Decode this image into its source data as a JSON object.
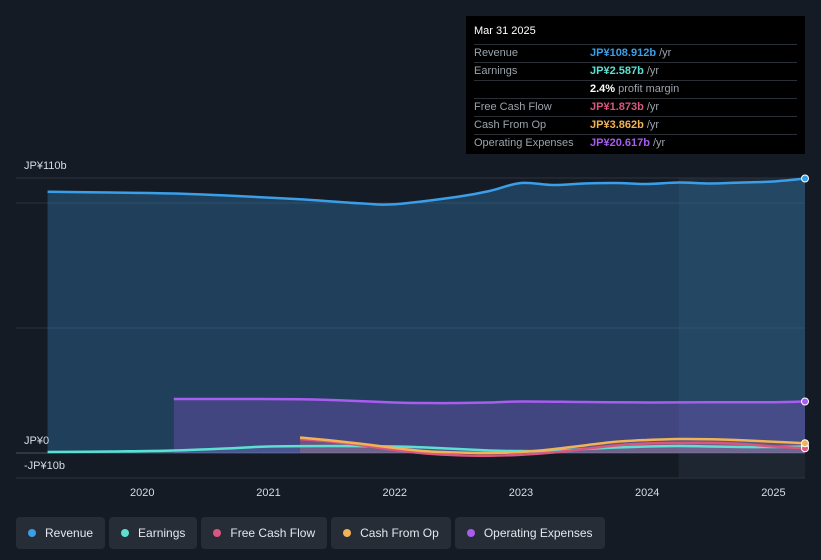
{
  "tooltip": {
    "date": "Mar 31 2025",
    "rows": [
      {
        "label": "Revenue",
        "value": "JP¥108.912b",
        "unit": "/yr",
        "color": "#3b9ee8"
      },
      {
        "label": "Earnings",
        "value": "JP¥2.587b",
        "unit": "/yr",
        "color": "#5ce0d2"
      },
      {
        "label": "",
        "value": "2.4%",
        "unit": "profit margin",
        "color": "#ffffff"
      },
      {
        "label": "Free Cash Flow",
        "value": "JP¥1.873b",
        "unit": "/yr",
        "color": "#d9577f"
      },
      {
        "label": "Cash From Op",
        "value": "JP¥3.862b",
        "unit": "/yr",
        "color": "#f0b356"
      },
      {
        "label": "Operating Expenses",
        "value": "JP¥20.617b",
        "unit": "/yr",
        "color": "#a85cf0"
      }
    ]
  },
  "legend": [
    {
      "label": "Revenue",
      "color": "#3b9ee8"
    },
    {
      "label": "Earnings",
      "color": "#5ce0d2"
    },
    {
      "label": "Free Cash Flow",
      "color": "#d9577f"
    },
    {
      "label": "Cash From Op",
      "color": "#f0b356"
    },
    {
      "label": "Operating Expenses",
      "color": "#a85cf0"
    }
  ],
  "chart_data": {
    "type": "area",
    "y_tick_labels": [
      "JP¥110b",
      "JP¥0",
      "-JP¥10b"
    ],
    "x_tick_labels": [
      "2020",
      "2021",
      "2022",
      "2023",
      "2024",
      "2025"
    ],
    "ylim": [
      -10,
      110
    ],
    "xlim": [
      2019.0,
      2025.25
    ],
    "highlight_from": 2024.25,
    "series": [
      {
        "name": "Revenue",
        "color": "#3b9ee8",
        "points": [
          [
            2019.25,
            104.5
          ],
          [
            2019.75,
            104.2
          ],
          [
            2020.25,
            103.8
          ],
          [
            2020.75,
            102.8
          ],
          [
            2021.25,
            101.5
          ],
          [
            2021.75,
            99.8
          ],
          [
            2022.0,
            99.5
          ],
          [
            2022.5,
            102.5
          ],
          [
            2022.75,
            104.8
          ],
          [
            2023.0,
            108.0
          ],
          [
            2023.25,
            107.2
          ],
          [
            2023.5,
            107.8
          ],
          [
            2023.75,
            108.0
          ],
          [
            2024.0,
            107.6
          ],
          [
            2024.25,
            108.2
          ],
          [
            2024.5,
            107.8
          ],
          [
            2024.75,
            108.2
          ],
          [
            2025.0,
            108.6
          ],
          [
            2025.25,
            109.8
          ]
        ]
      },
      {
        "name": "Earnings",
        "color": "#5ce0d2",
        "points": [
          [
            2019.25,
            0.4
          ],
          [
            2019.75,
            0.6
          ],
          [
            2020.25,
            1.0
          ],
          [
            2020.75,
            2.0
          ],
          [
            2021.0,
            2.6
          ],
          [
            2021.5,
            2.8
          ],
          [
            2022.0,
            2.6
          ],
          [
            2022.25,
            2.2
          ],
          [
            2022.75,
            1.0
          ],
          [
            2023.0,
            0.8
          ],
          [
            2023.25,
            0.8
          ],
          [
            2023.5,
            1.6
          ],
          [
            2023.75,
            2.2
          ],
          [
            2024.0,
            2.6
          ],
          [
            2024.25,
            2.8
          ],
          [
            2024.5,
            2.6
          ],
          [
            2024.75,
            2.4
          ],
          [
            2025.0,
            2.4
          ],
          [
            2025.25,
            2.6
          ]
        ]
      },
      {
        "name": "Free Cash Flow",
        "color": "#d9577f",
        "points": [
          [
            2021.25,
            5.6
          ],
          [
            2021.5,
            4.5
          ],
          [
            2021.75,
            3.0
          ],
          [
            2022.0,
            1.2
          ],
          [
            2022.25,
            -0.2
          ],
          [
            2022.5,
            -0.9
          ],
          [
            2022.75,
            -1.1
          ],
          [
            2023.0,
            -0.7
          ],
          [
            2023.25,
            0.2
          ],
          [
            2023.5,
            1.6
          ],
          [
            2023.75,
            3.0
          ],
          [
            2024.0,
            3.8
          ],
          [
            2024.25,
            4.0
          ],
          [
            2024.5,
            4.0
          ],
          [
            2024.75,
            3.6
          ],
          [
            2025.0,
            2.6
          ],
          [
            2025.25,
            1.9
          ]
        ]
      },
      {
        "name": "Cash From Op",
        "color": "#f0b356",
        "points": [
          [
            2021.25,
            6.2
          ],
          [
            2021.5,
            5.0
          ],
          [
            2021.75,
            3.6
          ],
          [
            2022.0,
            2.0
          ],
          [
            2022.25,
            0.7
          ],
          [
            2022.5,
            0.2
          ],
          [
            2022.75,
            0.0
          ],
          [
            2023.0,
            0.4
          ],
          [
            2023.25,
            1.5
          ],
          [
            2023.5,
            3.0
          ],
          [
            2023.75,
            4.5
          ],
          [
            2024.0,
            5.2
          ],
          [
            2024.25,
            5.6
          ],
          [
            2024.5,
            5.5
          ],
          [
            2024.75,
            5.1
          ],
          [
            2025.0,
            4.5
          ],
          [
            2025.25,
            3.9
          ]
        ]
      },
      {
        "name": "Operating Expenses",
        "color": "#a85cf0",
        "points": [
          [
            2020.25,
            21.6
          ],
          [
            2020.75,
            21.6
          ],
          [
            2021.25,
            21.5
          ],
          [
            2021.5,
            21.2
          ],
          [
            2022.0,
            20.2
          ],
          [
            2022.25,
            20.0
          ],
          [
            2022.5,
            20.0
          ],
          [
            2022.75,
            20.2
          ],
          [
            2023.0,
            20.6
          ],
          [
            2023.5,
            20.4
          ],
          [
            2024.0,
            20.2
          ],
          [
            2024.5,
            20.3
          ],
          [
            2025.0,
            20.3
          ],
          [
            2025.25,
            20.6
          ]
        ]
      }
    ]
  }
}
